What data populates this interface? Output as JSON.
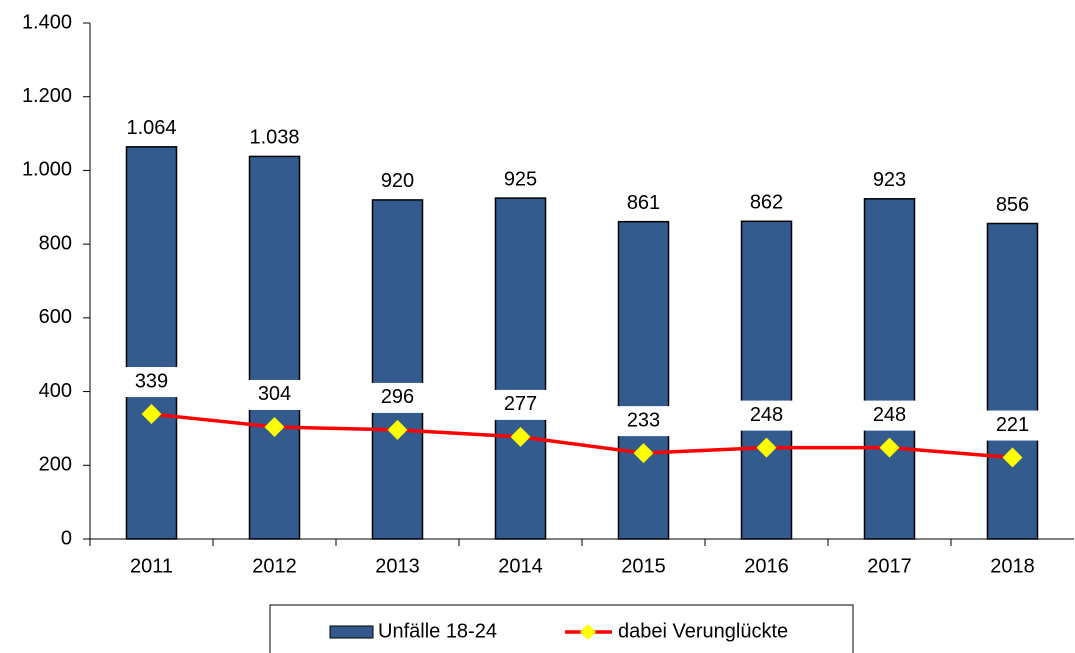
{
  "chart_data": {
    "type": "bar_line",
    "categories": [
      "2011",
      "2012",
      "2013",
      "2014",
      "2015",
      "2016",
      "2017",
      "2018"
    ],
    "series": [
      {
        "name": "Unfälle 18-24",
        "type": "bar",
        "color": "#335b8e",
        "values": [
          1064,
          1038,
          920,
          925,
          861,
          862,
          923,
          856
        ],
        "value_labels": [
          "1.064",
          "1.038",
          "920",
          "925",
          "861",
          "862",
          "923",
          "856"
        ]
      },
      {
        "name": "dabei Verunglückte",
        "type": "line",
        "color": "#ff0000",
        "marker_color": "#ffff00",
        "values": [
          339,
          304,
          296,
          277,
          233,
          248,
          248,
          221
        ]
      }
    ],
    "ylim": [
      0,
      1400
    ],
    "yticks": [
      0,
      200,
      400,
      600,
      800,
      {
        "value": 1000,
        "label": "1.000"
      },
      {
        "value": 1200,
        "label": "1.200"
      },
      {
        "value": 1400,
        "label": "1.400"
      }
    ],
    "legend": "bottom"
  }
}
